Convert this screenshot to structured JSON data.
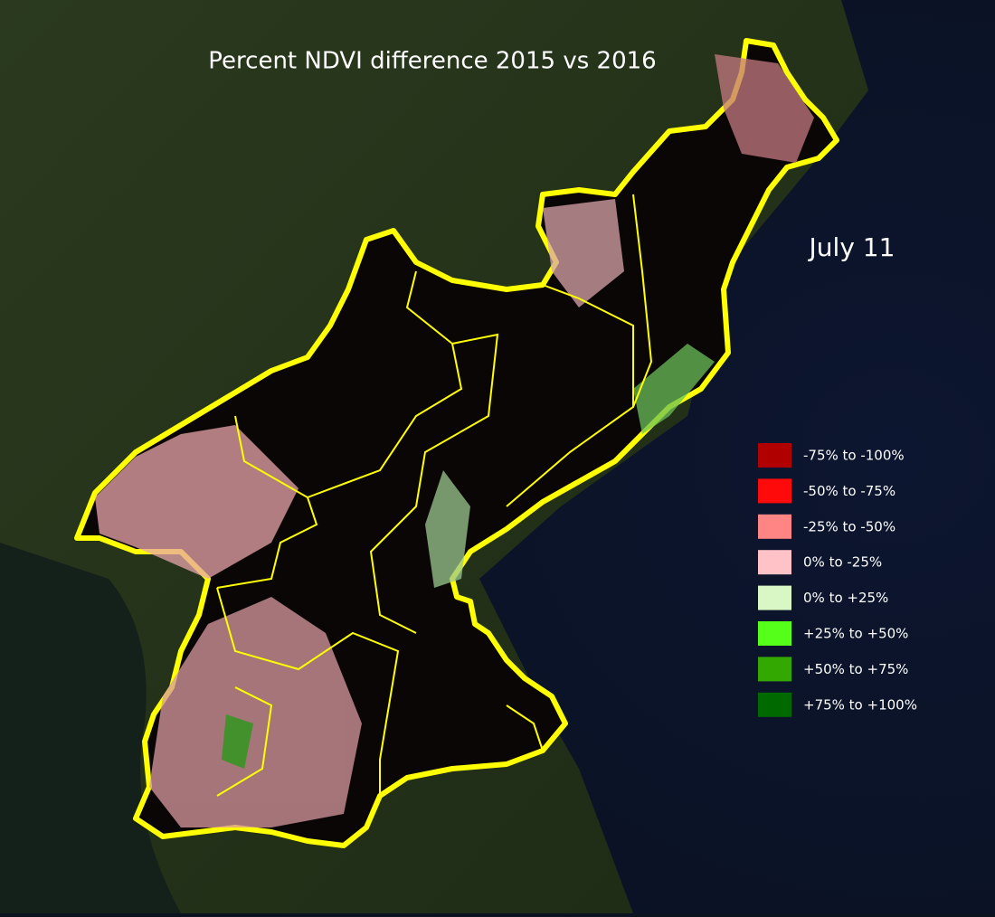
{
  "title": "Percent NDVI difference 2015 vs 2016",
  "date": "July 11",
  "legend": [
    {
      "label": "-75% to -100%",
      "color": "#b00000"
    },
    {
      "label": "-50% to -75%",
      "color": "#ff0a0a"
    },
    {
      "label": "-25% to -50%",
      "color": "#ff8585"
    },
    {
      "label": "0% to -25%",
      "color": "#ffc2c6"
    },
    {
      "label": "0% to +25%",
      "color": "#d9f7c4"
    },
    {
      "label": "+25% to +50%",
      "color": "#55ff1a"
    },
    {
      "label": "+50% to +75%",
      "color": "#33a800"
    },
    {
      "label": "+75% to +100%",
      "color": "#006a00"
    }
  ]
}
